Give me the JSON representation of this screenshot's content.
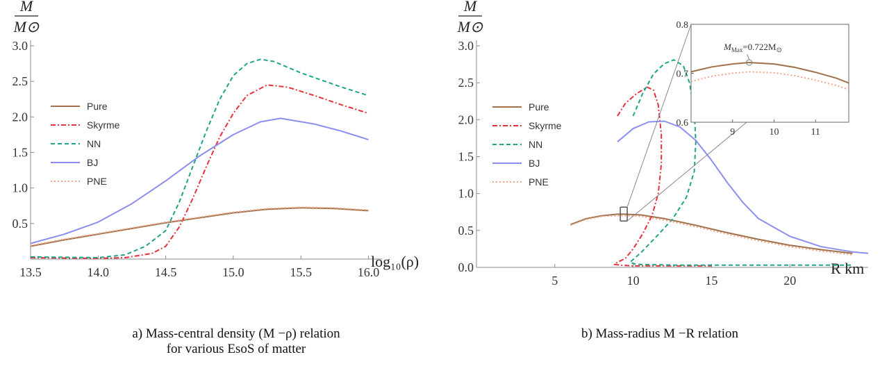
{
  "chart_data": [
    {
      "type": "line",
      "xlabel": "log₁₀(ρ)",
      "ylabel_num": "M",
      "ylabel_den": "M⊙",
      "xlim": [
        13.5,
        16.1
      ],
      "ylim": [
        0,
        3.0
      ],
      "xticks": [
        13.5,
        14.0,
        14.5,
        15.0,
        15.5,
        16.0
      ],
      "xtick_labels": [
        "13.5",
        "14.0",
        "14.5",
        "15.0",
        "15.5",
        "16.0"
      ],
      "yticks": [
        0.5,
        1.0,
        1.5,
        2.0,
        2.5,
        3.0
      ],
      "ytick_labels": [
        "0.5",
        "1.0",
        "1.5",
        "2.0",
        "2.5",
        "3.0"
      ],
      "legend_position": "left-middle",
      "series": [
        {
          "name": "Pure",
          "color": "#a0714a",
          "dash": "solid",
          "x": [
            13.5,
            13.75,
            14.0,
            14.25,
            14.5,
            14.75,
            15.0,
            15.25,
            15.5,
            15.75,
            16.0
          ],
          "y": [
            0.18,
            0.27,
            0.35,
            0.43,
            0.51,
            0.58,
            0.65,
            0.7,
            0.72,
            0.71,
            0.68
          ]
        },
        {
          "name": "Skyrme",
          "color": "#e8303a",
          "dash": "dashdot",
          "x": [
            13.5,
            14.0,
            14.2,
            14.4,
            14.5,
            14.6,
            14.7,
            14.8,
            14.9,
            15.0,
            15.1,
            15.25,
            15.4,
            15.6,
            15.8,
            16.0
          ],
          "y": [
            0.02,
            0.01,
            0.02,
            0.08,
            0.18,
            0.45,
            0.85,
            1.3,
            1.72,
            2.05,
            2.3,
            2.45,
            2.42,
            2.3,
            2.17,
            2.05
          ]
        },
        {
          "name": "NN",
          "color": "#1fa38a",
          "dash": "dashed",
          "x": [
            13.5,
            14.0,
            14.2,
            14.35,
            14.5,
            14.6,
            14.7,
            14.8,
            14.9,
            15.0,
            15.1,
            15.2,
            15.3,
            15.5,
            15.8,
            16.0
          ],
          "y": [
            0.03,
            0.02,
            0.06,
            0.18,
            0.4,
            0.8,
            1.3,
            1.8,
            2.25,
            2.58,
            2.75,
            2.81,
            2.78,
            2.62,
            2.42,
            2.3
          ]
        },
        {
          "name": "BJ",
          "color": "#8a8ef0",
          "dash": "solid",
          "x": [
            13.5,
            13.75,
            14.0,
            14.25,
            14.5,
            14.75,
            15.0,
            15.2,
            15.35,
            15.6,
            15.8,
            16.0
          ],
          "y": [
            0.22,
            0.35,
            0.52,
            0.78,
            1.1,
            1.45,
            1.75,
            1.93,
            1.98,
            1.9,
            1.8,
            1.68
          ]
        },
        {
          "name": "PNE",
          "color": "#f2a586",
          "dash": "dotted",
          "x": [
            13.5,
            13.75,
            14.0,
            14.25,
            14.5,
            14.75,
            15.0,
            15.25,
            15.5,
            15.75,
            16.0
          ],
          "y": [
            0.19,
            0.28,
            0.36,
            0.44,
            0.52,
            0.59,
            0.66,
            0.71,
            0.73,
            0.72,
            0.69
          ]
        }
      ],
      "caption_line1": "a) Mass-central density (M −ρ) relation",
      "caption_line2": "for various EsoS of matter"
    },
    {
      "type": "line",
      "xlabel": "R km",
      "ylabel_num": "M",
      "ylabel_den": "M⊙",
      "xlim": [
        0,
        25
      ],
      "ylim": [
        0,
        3.0
      ],
      "xticks": [
        5,
        10,
        15,
        20
      ],
      "xtick_labels": [
        "5",
        "10",
        "15",
        "20"
      ],
      "yticks": [
        0.0,
        0.5,
        1.0,
        1.5,
        2.0,
        2.5,
        3.0
      ],
      "ytick_labels": [
        "0.0",
        "0.5",
        "1.0",
        "1.5",
        "2.0",
        "2.5",
        "3.0"
      ],
      "legend_position": "left-middle",
      "series": [
        {
          "name": "Pure",
          "color": "#a0714a",
          "dash": "solid",
          "x": [
            6.0,
            7.0,
            8.0,
            9.0,
            9.5,
            10.5,
            12.0,
            14.0,
            16.0,
            18.0,
            20.0,
            22.0,
            24.0
          ],
          "y": [
            0.58,
            0.66,
            0.7,
            0.72,
            0.72,
            0.71,
            0.66,
            0.57,
            0.47,
            0.38,
            0.3,
            0.24,
            0.19
          ]
        },
        {
          "name": "Skyrme",
          "color": "#e8303a",
          "dash": "dashdot",
          "x": [
            9.0,
            9.5,
            10.2,
            10.9,
            11.3,
            11.6,
            11.8,
            11.8,
            11.6,
            11.2,
            10.6,
            10.0,
            9.5,
            9.0,
            8.8,
            9.2,
            10.0,
            12.0,
            15.0
          ],
          "y": [
            2.05,
            2.22,
            2.35,
            2.44,
            2.4,
            2.2,
            1.8,
            1.4,
            1.0,
            0.7,
            0.45,
            0.25,
            0.12,
            0.07,
            0.04,
            0.03,
            0.02,
            0.02,
            0.02
          ]
        },
        {
          "name": "NN",
          "color": "#1fa38a",
          "dash": "dashed",
          "x": [
            10.0,
            10.6,
            11.3,
            12.0,
            12.6,
            13.2,
            13.6,
            13.9,
            14.0,
            13.9,
            13.4,
            12.5,
            11.5,
            10.5,
            9.8,
            10.2,
            13.0,
            18.0,
            24.0
          ],
          "y": [
            2.05,
            2.35,
            2.62,
            2.76,
            2.81,
            2.73,
            2.5,
            2.1,
            1.7,
            1.3,
            0.95,
            0.65,
            0.42,
            0.2,
            0.07,
            0.04,
            0.03,
            0.03,
            0.03
          ]
        },
        {
          "name": "BJ",
          "color": "#8a8ef0",
          "dash": "solid",
          "x": [
            9.0,
            10.0,
            11.0,
            12.0,
            13.0,
            14.0,
            15.0,
            16.0,
            17.0,
            18.0,
            20.0,
            22.0,
            24.0,
            25.0
          ],
          "y": [
            1.7,
            1.88,
            1.97,
            1.98,
            1.9,
            1.72,
            1.45,
            1.15,
            0.88,
            0.66,
            0.42,
            0.28,
            0.21,
            0.19
          ]
        },
        {
          "name": "PNE",
          "color": "#f2a586",
          "dash": "dotted",
          "x": [
            6.0,
            7.0,
            8.0,
            9.0,
            9.5,
            10.5,
            12.0,
            14.0,
            16.0,
            18.0,
            20.0,
            22.0,
            24.0
          ],
          "y": [
            0.57,
            0.65,
            0.69,
            0.7,
            0.7,
            0.69,
            0.64,
            0.55,
            0.45,
            0.36,
            0.28,
            0.22,
            0.17
          ]
        }
      ],
      "inset": {
        "xlim": [
          8.0,
          11.8
        ],
        "ylim": [
          0.6,
          0.8
        ],
        "xticks": [
          9,
          10,
          11
        ],
        "xtick_labels": [
          "9",
          "10",
          "11"
        ],
        "yticks": [
          0.6,
          0.7,
          0.8
        ],
        "ytick_labels": [
          "0.6",
          "0.7",
          "0.8"
        ],
        "annotation_main": "M",
        "annotation_sub": "Max",
        "annotation_rest": "=0.722M",
        "annotation_sym": "⊙",
        "max_point": {
          "x": 9.4,
          "y": 0.722
        },
        "series": [
          {
            "name": "Pure",
            "color": "#a0714a",
            "dash": "solid",
            "x": [
              8.0,
              8.5,
              9.0,
              9.4,
              10.0,
              10.5,
              11.0,
              11.5,
              11.8
            ],
            "y": [
              0.703,
              0.713,
              0.719,
              0.722,
              0.719,
              0.712,
              0.702,
              0.69,
              0.68
            ]
          },
          {
            "name": "PNE",
            "color": "#f2a586",
            "dash": "dotted",
            "x": [
              8.0,
              8.5,
              9.0,
              9.4,
              10.0,
              10.5,
              11.0,
              11.5,
              11.8
            ],
            "y": [
              0.683,
              0.694,
              0.7,
              0.703,
              0.701,
              0.695,
              0.686,
              0.675,
              0.667
            ]
          }
        ]
      },
      "caption_line1": "b)  Mass-radius M −R relation"
    }
  ]
}
